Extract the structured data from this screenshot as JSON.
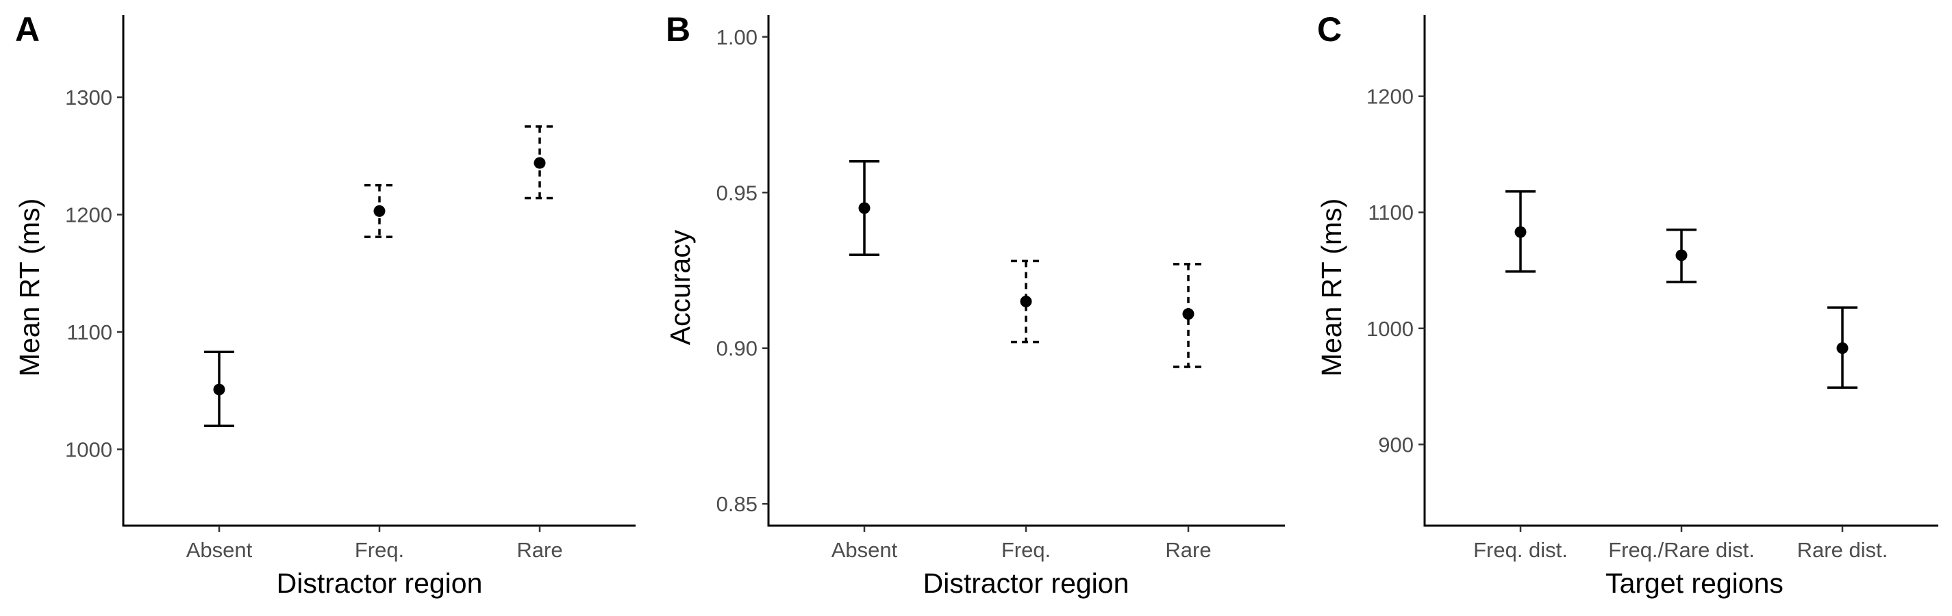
{
  "chart_data": [
    {
      "panel": "A",
      "type": "scatter",
      "xlabel": "Distractor region",
      "ylabel": "Mean RT (ms)",
      "categories": [
        "Absent",
        "Freq.",
        "Rare"
      ],
      "values": [
        1051,
        1203,
        1244
      ],
      "err_low": [
        1020,
        1181,
        1214
      ],
      "err_high": [
        1083,
        1225,
        1275
      ],
      "line_styles": [
        "solid",
        "dashed",
        "dashed"
      ],
      "ylim": [
        935,
        1370
      ],
      "yticks": [
        1000,
        1100,
        1200,
        1300
      ],
      "ytick_labels": [
        "1000",
        "1100",
        "1200",
        "1300"
      ],
      "grid": false,
      "legend": "none"
    },
    {
      "panel": "B",
      "type": "scatter",
      "xlabel": "Distractor region",
      "ylabel": "Accuracy",
      "categories": [
        "Absent",
        "Freq.",
        "Rare"
      ],
      "values": [
        0.945,
        0.915,
        0.911
      ],
      "err_low": [
        0.93,
        0.902,
        0.894
      ],
      "err_high": [
        0.96,
        0.928,
        0.927
      ],
      "line_styles": [
        "solid",
        "dashed",
        "dashed"
      ],
      "ylim": [
        0.843,
        1.007
      ],
      "yticks": [
        0.85,
        0.9,
        0.95,
        1.0
      ],
      "ytick_labels": [
        "0.85",
        "0.90",
        "0.95",
        "1.00"
      ],
      "grid": false,
      "legend": "none"
    },
    {
      "panel": "C",
      "type": "scatter",
      "xlabel": "Target regions",
      "ylabel": "Mean RT (ms)",
      "categories": [
        "Freq. dist.",
        "Freq./Rare dist.",
        "Rare dist."
      ],
      "values": [
        1083,
        1063,
        983
      ],
      "err_low": [
        1049,
        1040,
        949
      ],
      "err_high": [
        1118,
        1085,
        1018
      ],
      "line_styles": [
        "solid",
        "solid",
        "solid"
      ],
      "ylim": [
        830,
        1270
      ],
      "yticks": [
        900,
        1000,
        1100,
        1200
      ],
      "ytick_labels": [
        "900",
        "1000",
        "1100",
        "1200"
      ],
      "grid": false,
      "legend": "none"
    }
  ]
}
